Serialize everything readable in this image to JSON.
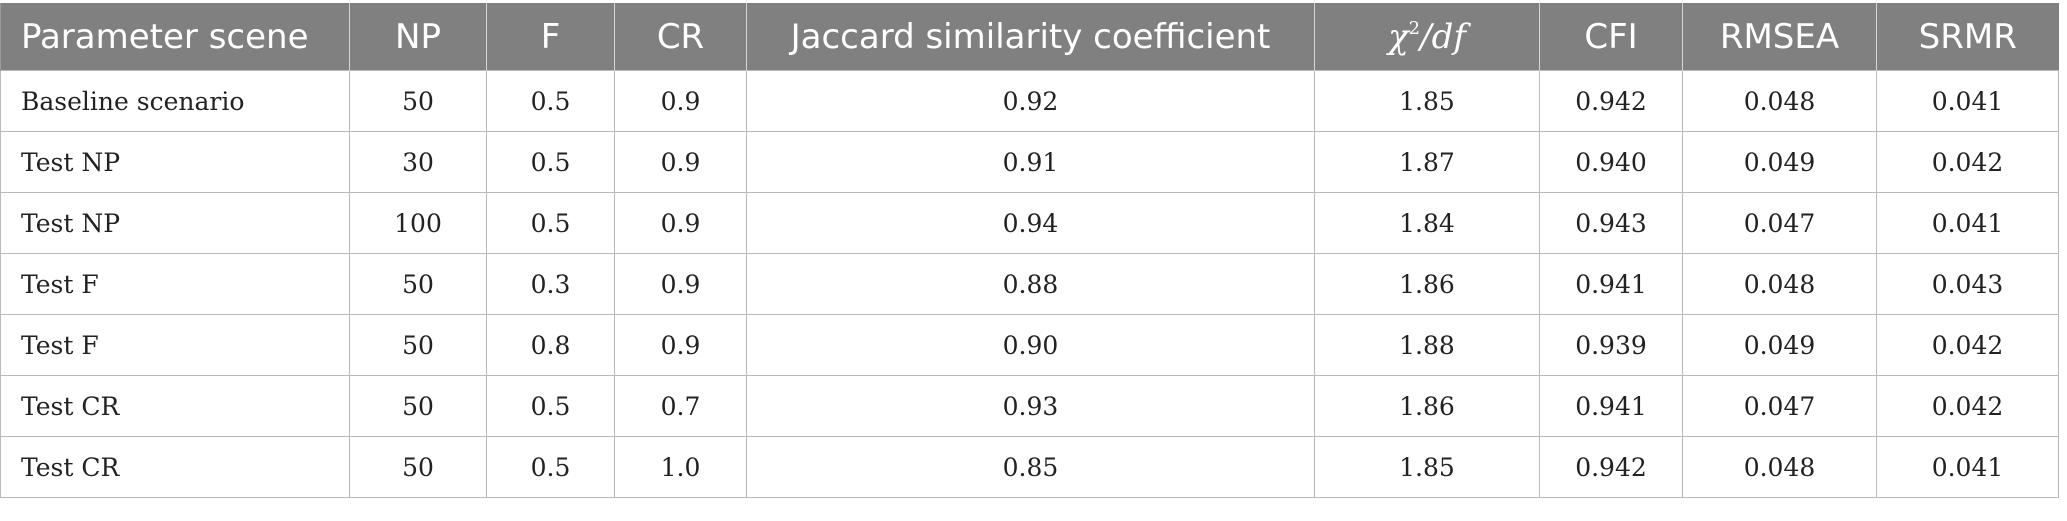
{
  "table": {
    "headers": {
      "scene": "Parameter scene",
      "np": "NP",
      "f": "F",
      "cr": "CR",
      "jaccard": "Jaccard similarity coefficient",
      "chi_symbol": "χ",
      "chi_exp": "2",
      "chi_rest": "/df",
      "cfi": "CFI",
      "rmsea": "RMSEA",
      "srmr": "SRMR"
    },
    "rows": [
      {
        "scene": "Baseline scenario",
        "np": "50",
        "f": "0.5",
        "cr": "0.9",
        "jaccard": "0.92",
        "chi2df": "1.85",
        "cfi": "0.942",
        "rmsea": "0.048",
        "srmr": "0.041"
      },
      {
        "scene": "Test NP",
        "np": "30",
        "f": "0.5",
        "cr": "0.9",
        "jaccard": "0.91",
        "chi2df": "1.87",
        "cfi": "0.940",
        "rmsea": "0.049",
        "srmr": "0.042"
      },
      {
        "scene": "Test NP",
        "np": "100",
        "f": "0.5",
        "cr": "0.9",
        "jaccard": "0.94",
        "chi2df": "1.84",
        "cfi": "0.943",
        "rmsea": "0.047",
        "srmr": "0.041"
      },
      {
        "scene": "Test F",
        "np": "50",
        "f": "0.3",
        "cr": "0.9",
        "jaccard": "0.88",
        "chi2df": "1.86",
        "cfi": "0.941",
        "rmsea": "0.048",
        "srmr": "0.043"
      },
      {
        "scene": "Test F",
        "np": "50",
        "f": "0.8",
        "cr": "0.9",
        "jaccard": "0.90",
        "chi2df": "1.88",
        "cfi": "0.939",
        "rmsea": "0.049",
        "srmr": "0.042"
      },
      {
        "scene": "Test CR",
        "np": "50",
        "f": "0.5",
        "cr": "0.7",
        "jaccard": "0.93",
        "chi2df": "1.86",
        "cfi": "0.941",
        "rmsea": "0.047",
        "srmr": "0.042"
      },
      {
        "scene": "Test CR",
        "np": "50",
        "f": "0.5",
        "cr": "1.0",
        "jaccard": "0.85",
        "chi2df": "1.85",
        "cfi": "0.942",
        "rmsea": "0.048",
        "srmr": "0.041"
      }
    ]
  }
}
